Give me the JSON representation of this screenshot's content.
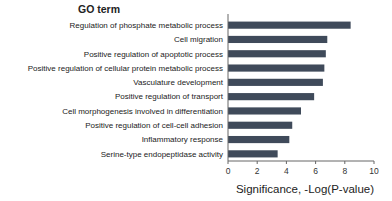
{
  "chart_data": {
    "type": "bar",
    "title": "GO term",
    "orientation": "horizontal",
    "categories": [
      "Regulation of phosphate metabolic process",
      "Cell migration",
      "Positive regulation of apoptotic process",
      "Positive regulation of cellular protein metabolic process",
      "Vasculature development",
      "Positive regulation of transport",
      "Cell morphogenesis involved in differentiation",
      "Positive regulation of cell-cell adhesion",
      "Inflammatory response",
      "Serine-type endopeptidase activity"
    ],
    "values": [
      8.4,
      6.8,
      6.7,
      6.6,
      6.5,
      5.9,
      5.0,
      4.4,
      4.2,
      3.4
    ],
    "color": "#3f4a5a",
    "x_label": "Significance, -Log(P-value)",
    "xlim": [
      0,
      10
    ],
    "xticks": [
      0,
      2,
      4,
      6,
      8,
      10
    ],
    "grid": false
  }
}
